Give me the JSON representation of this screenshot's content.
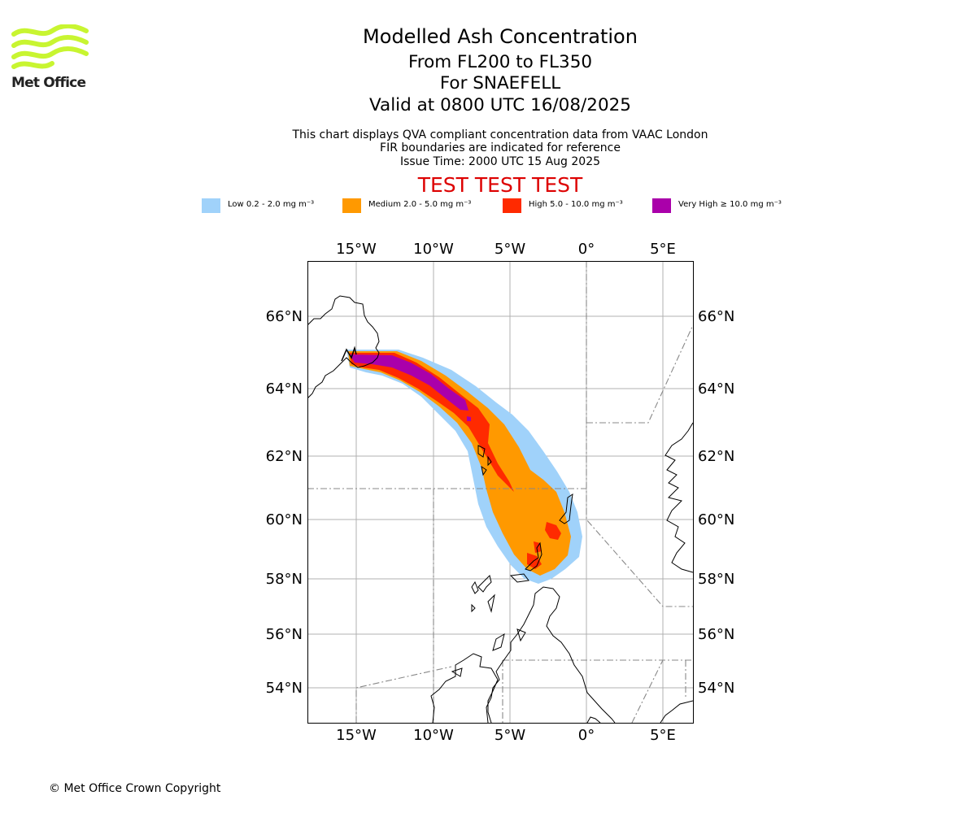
{
  "header": {
    "logo_text": "Met Office",
    "title": "Modelled Ash Concentration",
    "levels": "From FL200 to FL350",
    "volcano": "For SNAEFELL",
    "valid": "Valid at 0800 UTC 16/08/2025",
    "note_1": "This chart displays QVA compliant concentration data from VAAC London",
    "note_2": "FIR boundaries are indicated for reference",
    "issue_time": "Issue Time: 2000 UTC 15 Aug 2025",
    "test_banner": "TEST TEST TEST"
  },
  "legend": [
    {
      "label": "Low 0.2 - 2.0 mg m⁻³",
      "color": "#a0d2fa"
    },
    {
      "label": "Medium 2.0 - 5.0 mg m⁻³",
      "color": "#ff9900"
    },
    {
      "label": "High 5.0 - 10.0 mg m⁻³",
      "color": "#ff2a00"
    },
    {
      "label": "Very High ≥ 10.0 mg m⁻³",
      "color": "#aa00aa"
    }
  ],
  "map": {
    "lon_labels": [
      "15°W",
      "10°W",
      "5°W",
      "0°",
      "5°E"
    ],
    "lat_labels": [
      "66°N",
      "64°N",
      "62°N",
      "60°N",
      "58°N",
      "56°N",
      "54°N"
    ]
  },
  "colors": {
    "low": "#a0d2fa",
    "medium": "#ff9900",
    "high": "#ff2a00",
    "very_high": "#aa00aa",
    "test": "#dd0000",
    "logo": "#c8f531"
  },
  "footer": {
    "copyright": "© Met Office Crown Copyright"
  }
}
